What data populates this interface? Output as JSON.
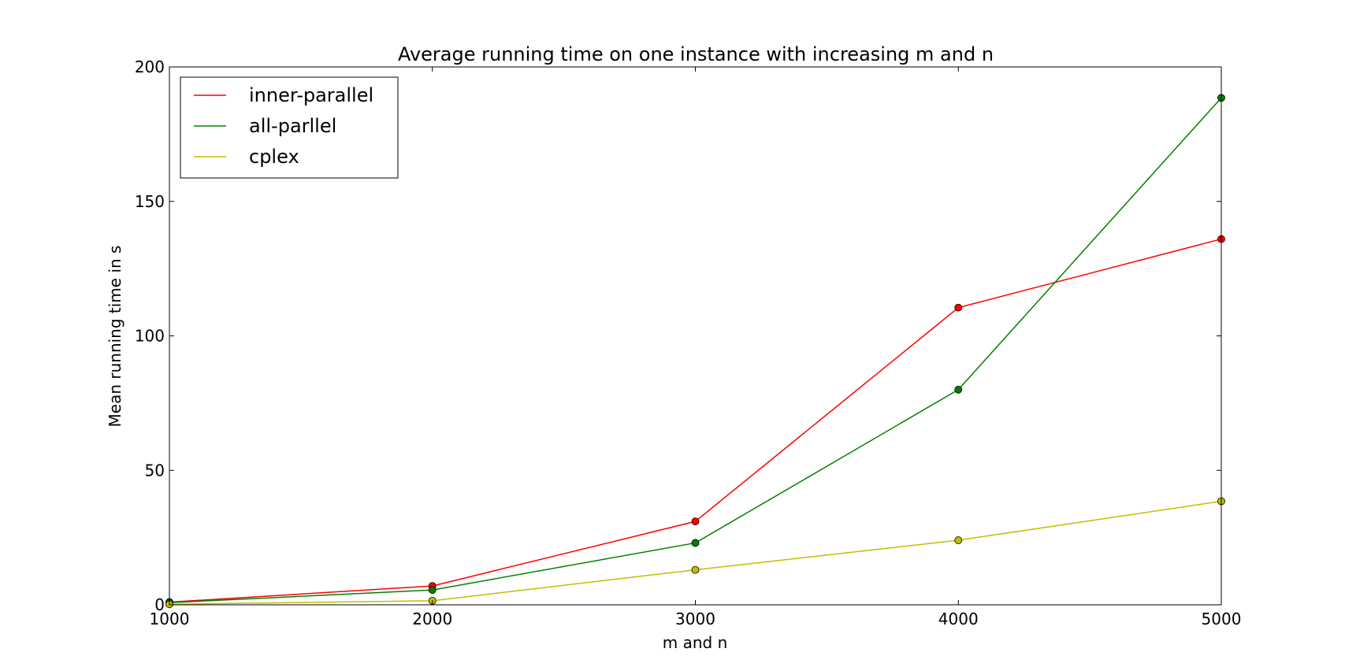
{
  "chart_data": {
    "type": "line",
    "title": "Average running time on one instance with increasing m and n",
    "xlabel": "m and n",
    "ylabel": "Mean running time in s",
    "x": [
      1000,
      2000,
      3000,
      4000,
      5000
    ],
    "xlim": [
      1000,
      5000
    ],
    "ylim": [
      0,
      200
    ],
    "xticks": [
      1000,
      2000,
      3000,
      4000,
      5000
    ],
    "yticks": [
      0,
      50,
      100,
      150,
      200
    ],
    "grid": false,
    "legend_position": "top-left",
    "series": [
      {
        "name": "inner-parallel",
        "color": "#ff0000",
        "marker": "circle",
        "values": [
          1.0,
          7.0,
          31.0,
          110.5,
          136.0
        ]
      },
      {
        "name": "all-parllel",
        "color": "#008000",
        "marker": "circle",
        "values": [
          0.8,
          5.5,
          23.0,
          80.0,
          188.5
        ]
      },
      {
        "name": "cplex",
        "color": "#bfbf00",
        "marker": "circle",
        "values": [
          0.2,
          1.5,
          13.0,
          24.0,
          38.5
        ]
      }
    ]
  }
}
